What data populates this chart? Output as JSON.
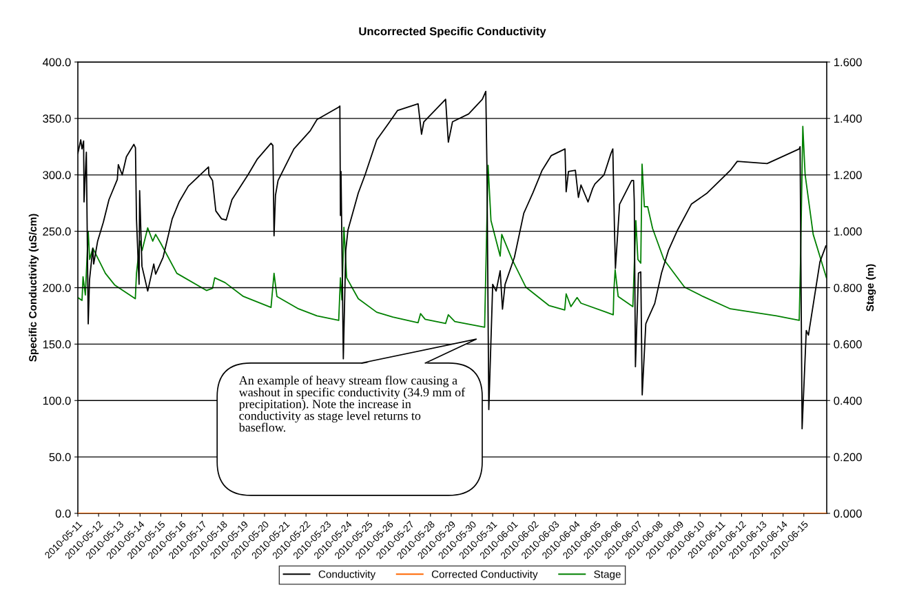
{
  "chart_data": {
    "type": "line",
    "title": "Uncorrected Specific Conductivity",
    "ylabel": "Specific Conductivity (uS/cm)",
    "y2label": "Stage (m)",
    "xlim": [
      "2010-05-11",
      "2010-06-16T02:30"
    ],
    "xticks": [
      "2010-05-11",
      "2010-05-12",
      "2010-05-13",
      "2010-05-14",
      "2010-05-15",
      "2010-05-16",
      "2010-05-17",
      "2010-05-18",
      "2010-05-19",
      "2010-05-20",
      "2010-05-21",
      "2010-05-22",
      "2010-05-23",
      "2010-05-24",
      "2010-05-25",
      "2010-05-26",
      "2010-05-27",
      "2010-05-28",
      "2010-05-29",
      "2010-05-30",
      "2010-05-31",
      "2010-06-01",
      "2010-06-02",
      "2010-06-03",
      "2010-06-04",
      "2010-06-05",
      "2010-06-06",
      "2010-06-07",
      "2010-06-08",
      "2010-06-09",
      "2010-06-10",
      "2010-06-11",
      "2010-06-12",
      "2010-06-13",
      "2010-06-14",
      "2010-06-15"
    ],
    "ylim": [
      0,
      400
    ],
    "yticks": [
      {
        "value": 0,
        "label": "0.0"
      },
      {
        "value": 50,
        "label": "50.0"
      },
      {
        "value": 100,
        "label": "100.0"
      },
      {
        "value": 150,
        "label": "150.0"
      },
      {
        "value": 200,
        "label": "200.0"
      },
      {
        "value": 250,
        "label": "250.0"
      },
      {
        "value": 300,
        "label": "300.0"
      },
      {
        "value": 350,
        "label": "350.0"
      },
      {
        "value": 400,
        "label": "400.0"
      }
    ],
    "y2lim": [
      0,
      1.6
    ],
    "y2ticks": [
      {
        "value": 0,
        "label": "0.000"
      },
      {
        "value": 0.2,
        "label": "0.200"
      },
      {
        "value": 0.4,
        "label": "0.400"
      },
      {
        "value": 0.6,
        "label": "0.600"
      },
      {
        "value": 0.8,
        "label": "0.800"
      },
      {
        "value": 1.0,
        "label": "1.000"
      },
      {
        "value": 1.2,
        "label": "1.200"
      },
      {
        "value": 1.4,
        "label": "1.400"
      },
      {
        "value": 1.6,
        "label": "1.600"
      }
    ],
    "grid": "y",
    "legend": "bottom",
    "marker": "none",
    "line_style": "solid",
    "annotations": [
      "An example of heavy stream flow causing a washout in specific conductivity (34.9 mm of precipitation). Note the increase in conductivity as stage level returns to baseflow."
    ],
    "series": [
      {
        "name": "Conductivity",
        "color": "#000000",
        "x": [
          "2010-05-11T00:00",
          "2010-05-11T03:20",
          "2010-05-11T04:50",
          "2010-05-11T06:40",
          "2010-05-11T07:10",
          "2010-05-11T09:50",
          "2010-05-11T12:00",
          "2010-05-11T13:30",
          "2010-05-11T17:20",
          "2010-05-11T18:20",
          "2010-05-11T22:50",
          "2010-05-12T05:30",
          "2010-05-12T12:00",
          "2010-05-12T21:40",
          "2010-05-12T22:50",
          "2010-05-13T03:20",
          "2010-05-13T08:10",
          "2010-05-13T16:50",
          "2010-05-13T18:40",
          "2010-05-13T19:50",
          "2010-05-13T22:50",
          "2010-05-13T23:30",
          "2010-05-14T02:10",
          "2010-05-14T08:50",
          "2010-05-14T15:50",
          "2010-05-14T18:00",
          "2010-05-15T02:40",
          "2010-05-15T13:10",
          "2010-05-15T21:10",
          "2010-05-16T07:50",
          "2010-05-17T07:10",
          "2010-05-17T07:40",
          "2010-05-17T11:50",
          "2010-05-17T15:40",
          "2010-05-17T22:20",
          "2010-05-18T03:40",
          "2010-05-18T10:20",
          "2010-05-19T04:50",
          "2010-05-19T15:40",
          "2010-05-20T07:30",
          "2010-05-20T09:40",
          "2010-05-20T11:00",
          "2010-05-20T12:40",
          "2010-05-20T15:40",
          "2010-05-21T10:00",
          "2010-05-22T04:50",
          "2010-05-22T12:40",
          "2010-05-23T13:50",
          "2010-05-23T15:10",
          "2010-05-23T15:50",
          "2010-05-23T16:30",
          "2010-05-23T19:10",
          "2010-05-23T22:00",
          "2010-05-24T00:30",
          "2010-05-24T12:30",
          "2010-05-24T20:20",
          "2010-05-25T09:50",
          "2010-05-25T23:00",
          "2010-05-26T09:50",
          "2010-05-27T09:40",
          "2010-05-27T13:40",
          "2010-05-27T16:20",
          "2010-05-28T17:30",
          "2010-05-28T20:40",
          "2010-05-29T01:30",
          "2010-05-29T20:10",
          "2010-05-30T12:00",
          "2010-05-30T16:00",
          "2010-05-30T17:20",
          "2010-05-30T19:30",
          "2010-05-30T23:20",
          "2010-05-31T00:00",
          "2010-05-31T04:00",
          "2010-05-31T08:40",
          "2010-05-31T11:20",
          "2010-05-31T14:20",
          "2010-06-01T01:10",
          "2010-06-01T12:00",
          "2010-06-01T22:30",
          "2010-06-02T09:10",
          "2010-06-02T19:40",
          "2010-06-03T11:40",
          "2010-06-03T13:00",
          "2010-06-03T15:40",
          "2010-06-03T23:40",
          "2010-06-04T03:10",
          "2010-06-04T06:10",
          "2010-06-04T14:20",
          "2010-06-04T19:40",
          "2010-06-04T22:20",
          "2010-06-05T08:50",
          "2010-06-05T16:50",
          "2010-06-05T19:00",
          "2010-06-05T20:50",
          "2010-06-05T22:00",
          "2010-06-06T02:50",
          "2010-06-06T16:50",
          "2010-06-06T19:00",
          "2010-06-06T19:50",
          "2010-06-06T21:10",
          "2010-06-07T00:40",
          "2010-06-07T03:20",
          "2010-06-07T05:00",
          "2010-06-07T09:10",
          "2010-06-07T11:20",
          "2010-06-07T19:30",
          "2010-06-08T03:20",
          "2010-06-08T11:20",
          "2010-06-08T21:50",
          "2010-06-09T13:50",
          "2010-06-10T08:20",
          "2010-06-11T11:00",
          "2010-06-11T19:00",
          "2010-06-13T05:30",
          "2010-06-14T18:40",
          "2010-06-14T19:40",
          "2010-06-14T22:00",
          "2010-06-15T02:50",
          "2010-06-15T05:20",
          "2010-06-15T18:40",
          "2010-06-16T01:30"
        ],
        "values": [
          319,
          331,
          323,
          330,
          276,
          320,
          168,
          207,
          235,
          221,
          241,
          258,
          278,
          296,
          309,
          300,
          316,
          327,
          324,
          261,
          203,
          286,
          219,
          197,
          221,
          212,
          227,
          261,
          276,
          290,
          307,
          300,
          295,
          268,
          261,
          260,
          278,
          300,
          314,
          328,
          326,
          246,
          282,
          295,
          323,
          339,
          349,
          360,
          361,
          264,
          303,
          137,
          233,
          251,
          284,
          300,
          331,
          345,
          357,
          363,
          336,
          347,
          367,
          329,
          347,
          354,
          367,
          374,
          308,
          92,
          186,
          203,
          197,
          215,
          181,
          203,
          227,
          266,
          284,
          304,
          317,
          323,
          285,
          303,
          304,
          280,
          291,
          276,
          288,
          292,
          300,
          319,
          323,
          255,
          217,
          274,
          295,
          295,
          276,
          130,
          213,
          214,
          105,
          168,
          172,
          186,
          213,
          233,
          251,
          274,
          284,
          304,
          312,
          310,
          323,
          325,
          75,
          162,
          158,
          223,
          237
        ]
      },
      {
        "name": "Corrected Conductivity",
        "color": "#ff6600",
        "x": [
          "2010-05-11T00:00",
          "2010-06-16T02:30"
        ],
        "values": [
          0,
          0
        ]
      },
      {
        "name": "Stage",
        "color": "#008000",
        "axis": "y2",
        "x": [
          "2010-05-11T00:00",
          "2010-05-11T04:50",
          "2010-05-11T06:00",
          "2010-05-11T08:40",
          "2010-05-11T12:00",
          "2010-05-11T13:40",
          "2010-05-11T17:20",
          "2010-05-12T07:50",
          "2010-05-12T18:30",
          "2010-05-13T18:30",
          "2010-05-13T19:50",
          "2010-05-14T00:00",
          "2010-05-14T02:20",
          "2010-05-14T08:50",
          "2010-05-14T14:40",
          "2010-05-14T18:00",
          "2010-05-15T00:00",
          "2010-05-15T18:30",
          "2010-05-17T04:50",
          "2010-05-17T11:50",
          "2010-05-17T14:20",
          "2010-05-18T02:20",
          "2010-05-18T23:30",
          "2010-05-20T07:30",
          "2010-05-20T11:00",
          "2010-05-20T14:20",
          "2010-05-21T15:20",
          "2010-05-22T12:40",
          "2010-05-23T13:50",
          "2010-05-23T15:50",
          "2010-05-23T17:30",
          "2010-05-23T19:50",
          "2010-05-23T23:00",
          "2010-05-24T12:30",
          "2010-05-25T09:50",
          "2010-05-26T04:30",
          "2010-05-27T09:40",
          "2010-05-27T12:30",
          "2010-05-27T17:50",
          "2010-05-28T17:30",
          "2010-05-28T20:40",
          "2010-05-29T04:10",
          "2010-05-30T14:40",
          "2010-05-30T18:40",
          "2010-05-30T22:00",
          "2010-05-31T08:40",
          "2010-05-31T10:30",
          "2010-05-31T22:30",
          "2010-06-01T14:20",
          "2010-06-02T17:00",
          "2010-06-03T11:20",
          "2010-06-03T13:00",
          "2010-06-03T18:30",
          "2010-06-04T01:40",
          "2010-06-04T06:10",
          "2010-06-05T11:30",
          "2010-06-05T19:30",
          "2010-06-05T20:10",
          "2010-06-05T21:40",
          "2010-06-06T01:10",
          "2010-06-06T18:10",
          "2010-06-06T21:40",
          "2010-06-07T00:00",
          "2010-06-07T03:20",
          "2010-06-07T04:50",
          "2010-06-07T07:30",
          "2010-06-07T11:20",
          "2010-06-07T17:00",
          "2010-06-08T06:00",
          "2010-06-09T06:00",
          "2010-06-10T03:10",
          "2010-06-11T11:00",
          "2010-06-13T16:20",
          "2010-06-14T18:40",
          "2010-06-14T20:10",
          "2010-06-14T22:50",
          "2010-06-15T01:30",
          "2010-06-15T10:50",
          "2010-06-16T02:10"
        ],
        "values": [
          0.765,
          0.755,
          0.839,
          0.774,
          1.0,
          0.9,
          0.94,
          0.851,
          0.81,
          0.761,
          0.851,
          0.965,
          0.932,
          1.012,
          0.965,
          0.989,
          0.957,
          0.851,
          0.79,
          0.798,
          0.835,
          0.818,
          0.769,
          0.73,
          0.851,
          0.769,
          0.725,
          0.7,
          0.684,
          0.835,
          0.757,
          1.014,
          0.835,
          0.761,
          0.713,
          0.696,
          0.676,
          0.708,
          0.688,
          0.673,
          0.704,
          0.68,
          0.66,
          1.234,
          1.038,
          0.912,
          0.989,
          0.9,
          0.802,
          0.737,
          0.721,
          0.778,
          0.733,
          0.765,
          0.745,
          0.713,
          0.704,
          0.786,
          0.863,
          0.769,
          0.733,
          1.038,
          0.9,
          0.887,
          1.238,
          1.087,
          1.087,
          1.01,
          0.9,
          0.802,
          0.769,
          0.725,
          0.7,
          0.684,
          0.892,
          1.372,
          1.201,
          0.989,
          0.835
        ]
      }
    ]
  }
}
